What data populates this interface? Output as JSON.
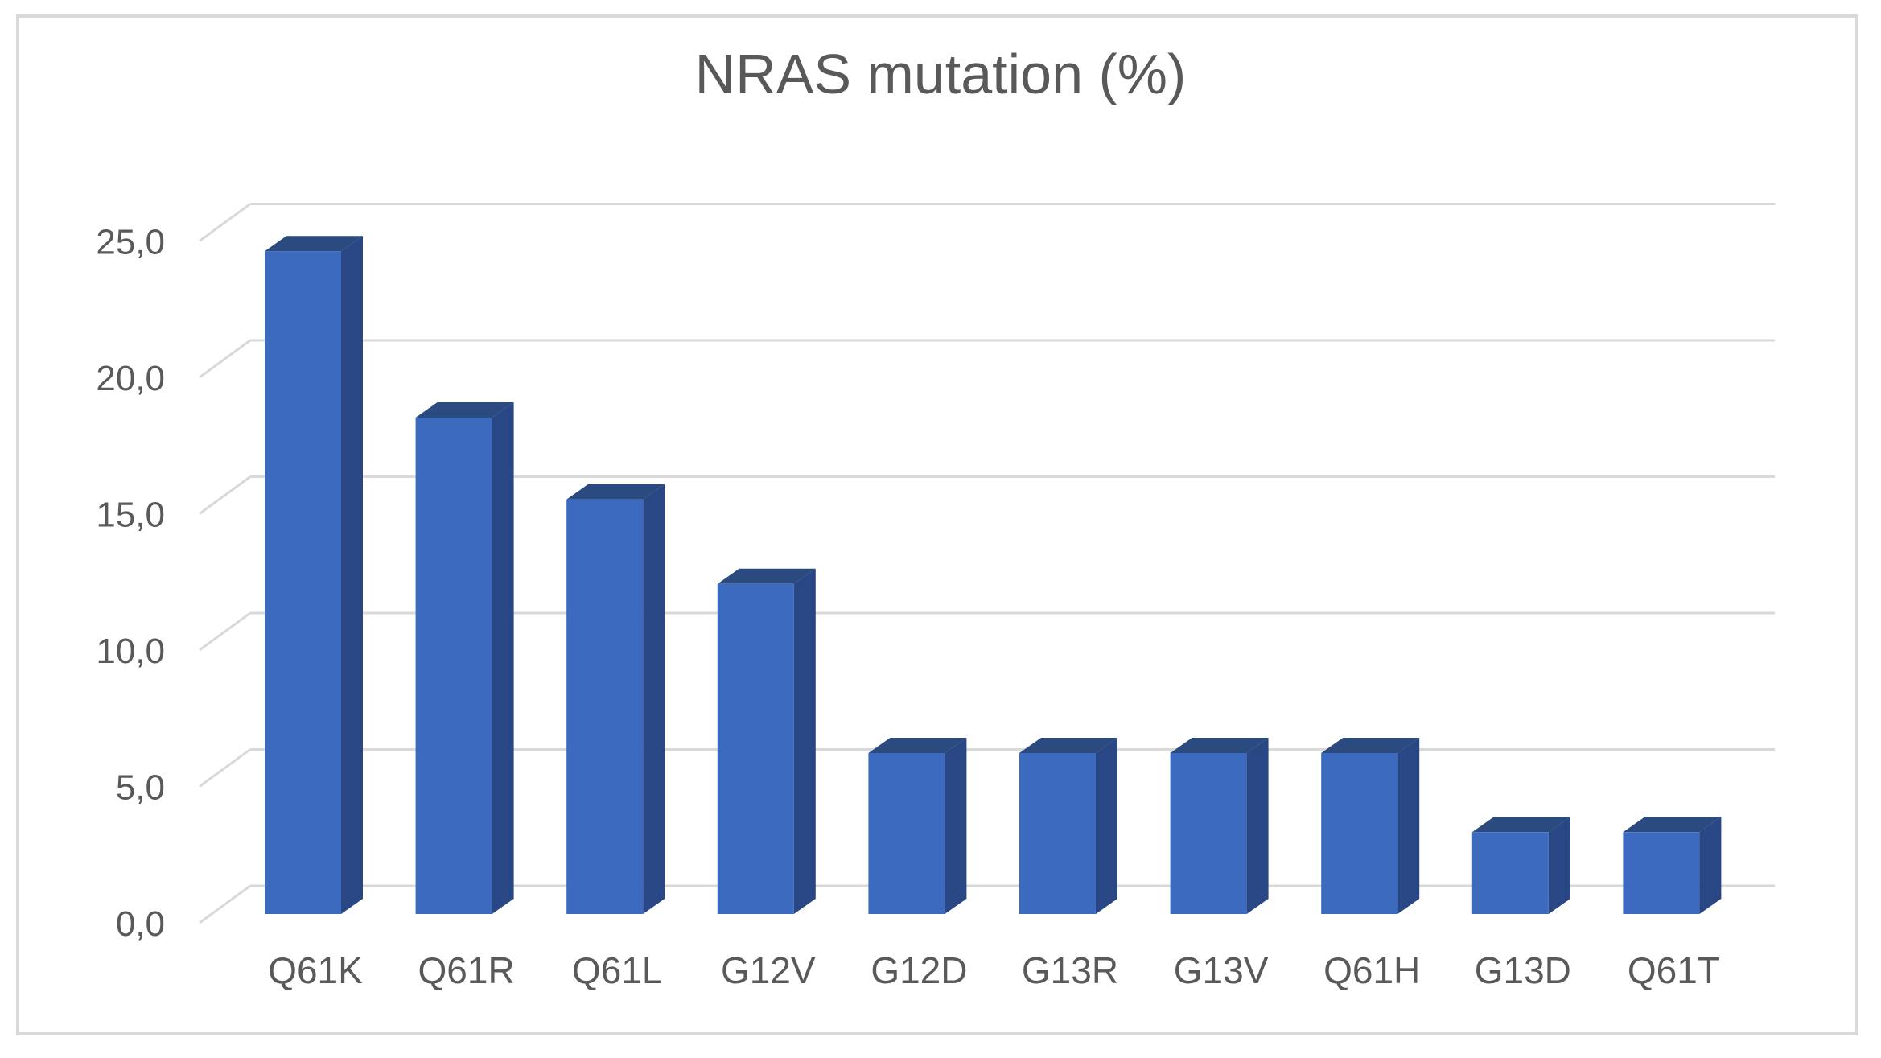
{
  "chart_data": {
    "type": "bar",
    "style": "3d-column",
    "title": "NRAS mutation (%)",
    "categories": [
      "Q61K",
      "Q61R",
      "Q61L",
      "G12V",
      "G12D",
      "G13R",
      "G13V",
      "Q61H",
      "G13D",
      "Q61T"
    ],
    "values": [
      24.3,
      18.2,
      15.2,
      12.1,
      5.9,
      5.9,
      5.9,
      5.9,
      3.0,
      3.0
    ],
    "xlabel": "",
    "ylabel": "",
    "ylim": [
      0,
      25
    ],
    "ytick_step": 5,
    "ytick_labels": [
      "0,0",
      "5,0",
      "10,0",
      "15,0",
      "20,0",
      "25,0"
    ],
    "decimal_separator": ",",
    "grid": true,
    "legend": false,
    "colors": {
      "bar_front": "#3b6abe",
      "bar_top": "#2b4a80",
      "bar_side": "#294784",
      "gridline": "#d9d9d9",
      "text": "#595959",
      "frame_border": "#d9d9d9",
      "background": "#ffffff"
    }
  }
}
